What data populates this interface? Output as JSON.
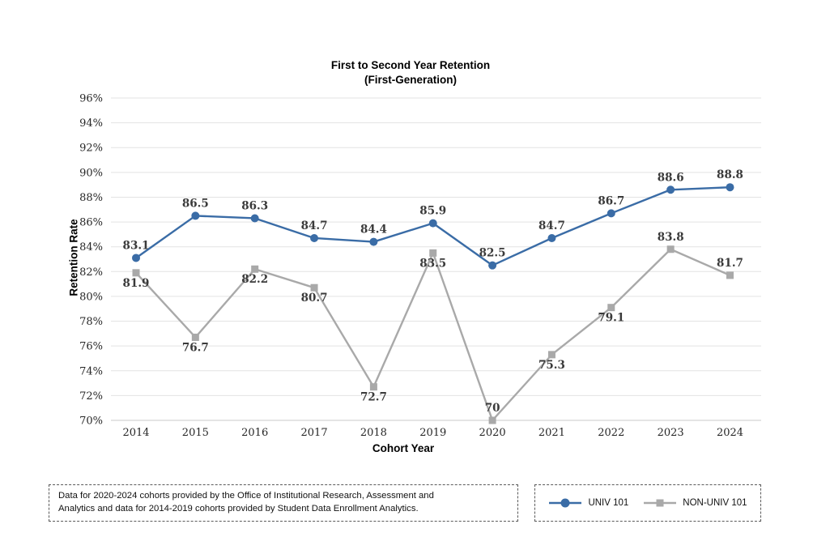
{
  "title": {
    "line1": "First to Second Year Retention",
    "line2": "(First-Generation)"
  },
  "chart_data": {
    "type": "line",
    "x": [
      "2014",
      "2015",
      "2016",
      "2017",
      "2018",
      "2019",
      "2020",
      "2021",
      "2022",
      "2023",
      "2024"
    ],
    "xlabel": "Cohort Year",
    "ylabel": "Retention Rate",
    "ylim": [
      70,
      96
    ],
    "ytick_step": 2,
    "ytick_suffix": "%",
    "grid": true,
    "legend_position": "bottom-right",
    "series": [
      {
        "name": "UNIV 101",
        "color": "#3A6CA6",
        "marker": "circle",
        "values": [
          83.1,
          86.5,
          86.3,
          84.7,
          84.4,
          85.9,
          82.5,
          84.7,
          86.7,
          88.6,
          88.8
        ],
        "label_side": [
          "above",
          "above",
          "above",
          "above",
          "above",
          "above",
          "above",
          "above",
          "above",
          "above",
          "above"
        ]
      },
      {
        "name": "NON-UNIV 101",
        "color": "#A9A9A9",
        "marker": "square",
        "values": [
          81.9,
          76.7,
          82.2,
          80.7,
          72.7,
          83.5,
          70,
          75.3,
          79.1,
          83.8,
          81.7
        ],
        "label_side": [
          "below",
          "below",
          "below",
          "below",
          "below",
          "below",
          "above",
          "below",
          "below",
          "above",
          "above"
        ]
      }
    ]
  },
  "note": {
    "line1": "Data for 2020-2024 cohorts provided by the Office of Institutional Research, Assessment and",
    "line2": "Analytics and data for 2014-2019 cohorts provided by Student Data Enrollment Analytics."
  }
}
